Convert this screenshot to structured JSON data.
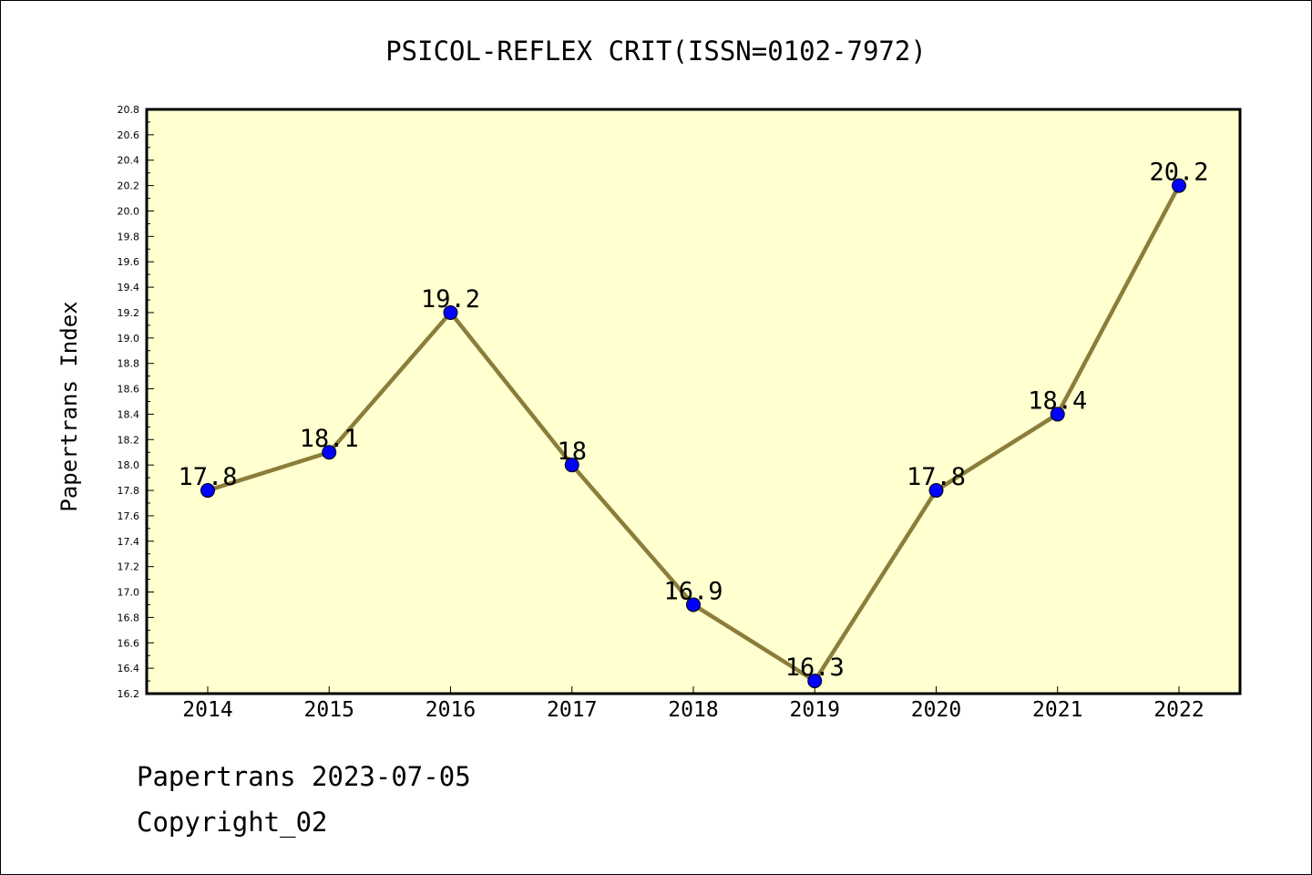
{
  "chart_data": {
    "type": "line",
    "title": "PSICOL-REFLEX CRIT(ISSN=0102-7972)",
    "xlabel": "",
    "ylabel": "Papertrans Index",
    "categories": [
      "2014",
      "2015",
      "2016",
      "2017",
      "2018",
      "2019",
      "2020",
      "2021",
      "2022"
    ],
    "values": [
      17.8,
      18.1,
      19.2,
      18.0,
      16.9,
      16.3,
      17.8,
      18.4,
      20.2
    ],
    "data_labels": [
      "17.8",
      "18.1",
      "19.2",
      "18",
      "16.9",
      "16.3",
      "17.8",
      "18.4",
      "20.2"
    ],
    "ylim": [
      16.2,
      20.8
    ],
    "yticks": [
      "16.2",
      "16.4",
      "16.6",
      "16.8",
      "17.0",
      "17.2",
      "17.4",
      "17.6",
      "17.8",
      "18.0",
      "18.2",
      "18.4",
      "18.6",
      "18.8",
      "19.0",
      "19.2",
      "19.4",
      "19.6",
      "19.8",
      "20.0",
      "20.2",
      "20.4",
      "20.6",
      "20.8"
    ],
    "grid": false,
    "legend": "none",
    "colors": {
      "plot_background": "#ffffd0",
      "line": "#8b7d3a",
      "marker": "#0000ff"
    }
  },
  "footer": {
    "line1": "Papertrans 2023-07-05",
    "line2": "Copyright_02"
  }
}
